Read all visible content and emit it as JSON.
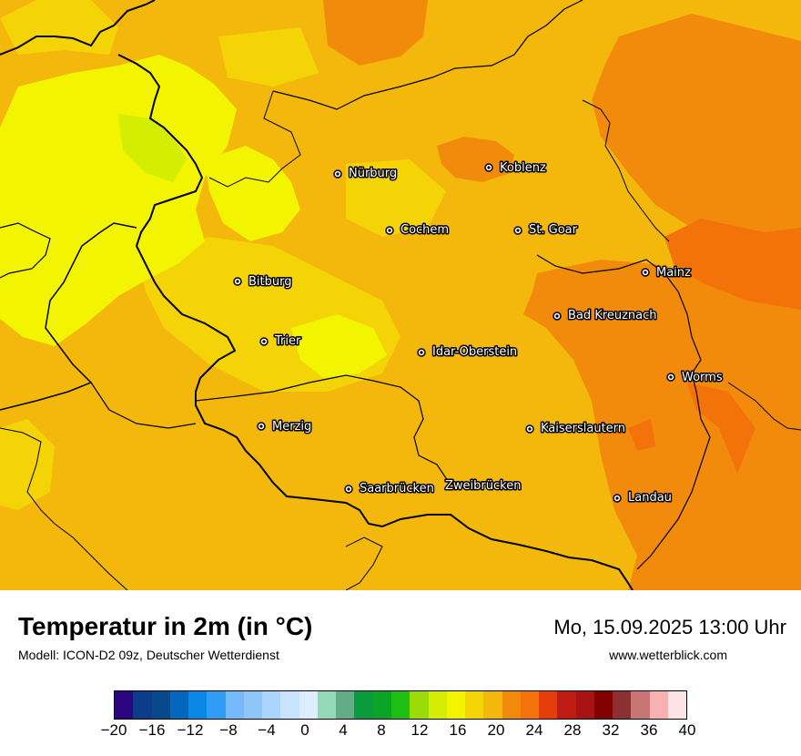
{
  "map": {
    "cities": [
      {
        "name": "Nürburg"
      },
      {
        "name": "Koblenz"
      },
      {
        "name": "Cochem"
      },
      {
        "name": "St. Goar"
      },
      {
        "name": "Bitburg"
      },
      {
        "name": "Mainz"
      },
      {
        "name": "Bad Kreuznach"
      },
      {
        "name": "Trier"
      },
      {
        "name": "Idar-Oberstein"
      },
      {
        "name": "Worms"
      },
      {
        "name": "Merzig"
      },
      {
        "name": "Kaiserslautern"
      },
      {
        "name": "Saarbrücken"
      },
      {
        "name": "Zweibrücken"
      },
      {
        "name": "Landau"
      }
    ]
  },
  "footer": {
    "title": "Temperatur in 2m (in °C)",
    "model": "Modell: ICON-D2 09z, Deutscher Wetterdienst",
    "datetime": "Mo, 15.09.2025 13:00 Uhr",
    "website": "www.wetterblick.com"
  },
  "legend": {
    "colors": [
      "#2c0480",
      "#0b3d8a",
      "#074a8c",
      "#0566bd",
      "#0a86e6",
      "#2f9cf5",
      "#75bafa",
      "#8fc6f9",
      "#aad4fb",
      "#c8e3fc",
      "#dcedfd",
      "#93d9b7",
      "#63ad86",
      "#0a9b3c",
      "#0aa427",
      "#1fbe12",
      "#9bdc06",
      "#d3ee03",
      "#f2f400",
      "#f4d407",
      "#f3b80b",
      "#f28a0c",
      "#f3730a",
      "#e53d0a",
      "#bd1b13",
      "#a81414",
      "#830000",
      "#8c3035",
      "#c77575",
      "#f8b0b0",
      "#fde2e5"
    ],
    "tick_labels": [
      "−20",
      "−16",
      "−12",
      "−8",
      "−4",
      "0",
      "4",
      "8",
      "12",
      "16",
      "20",
      "24",
      "28",
      "32",
      "36",
      "40"
    ]
  }
}
